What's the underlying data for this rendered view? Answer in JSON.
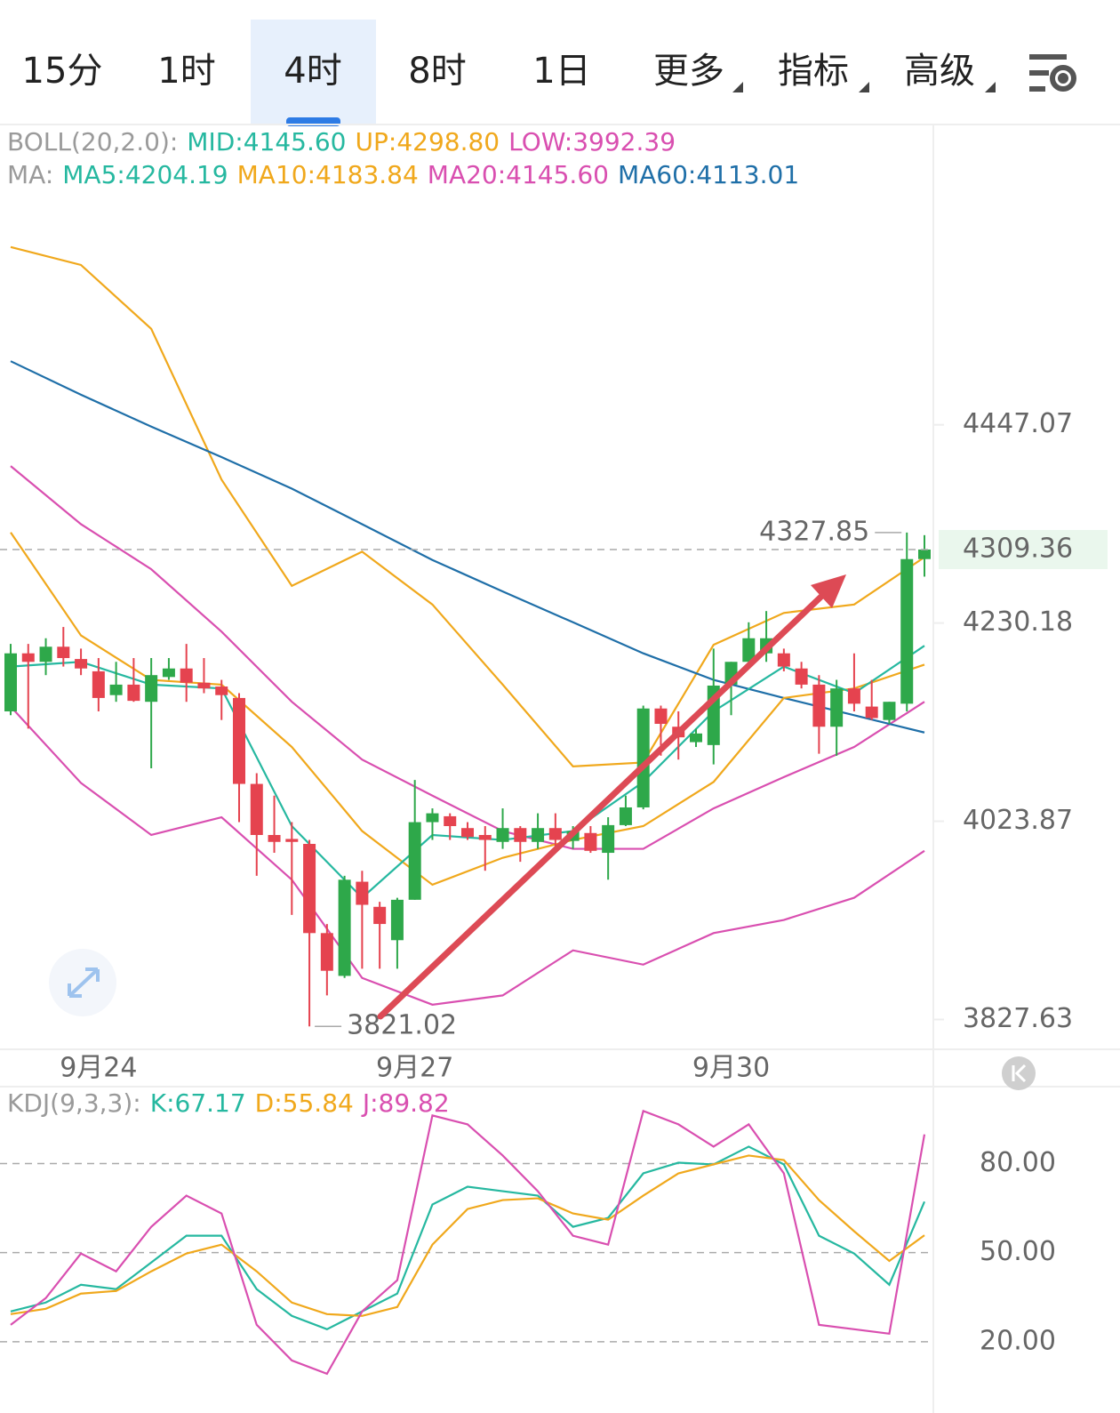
{
  "tabs": [
    "15分",
    "1时",
    "4时",
    "8时",
    "1日",
    "更多",
    "指标",
    "高级"
  ],
  "selected_tab": 2,
  "chart_data": [
    {
      "type": "candlestick",
      "log_scale": true,
      "legend_rows": [
        [
          {
            "text": "BOLL(20,2.0):",
            "color": "#9a9a9a"
          },
          {
            "text": "MID:4145.60",
            "color": "#26b8a0"
          },
          {
            "text": "UP:4298.80",
            "color": "#f0a81c"
          },
          {
            "text": "LOW:3992.39",
            "color": "#d94fb0"
          }
        ],
        [
          {
            "text": "MA:",
            "color": "#9a9a9a"
          },
          {
            "text": "MA5:4204.19",
            "color": "#26b8a0"
          },
          {
            "text": "MA10:4183.84",
            "color": "#f0a81c"
          },
          {
            "text": "MA20:4145.60",
            "color": "#d94fb0"
          },
          {
            "text": "MA60:4113.01",
            "color": "#1f6fa8"
          }
        ]
      ],
      "categories": [
        null,
        null,
        null,
        null,
        null,
        "9月24",
        null,
        null,
        null,
        null,
        null,
        null,
        null,
        null,
        null,
        null,
        null,
        null,
        null,
        null,
        null,
        null,
        null,
        "9月27",
        null,
        null,
        null,
        null,
        null,
        null,
        null,
        null,
        null,
        null,
        null,
        null,
        null,
        null,
        null,
        null,
        null,
        "9月30",
        null,
        null,
        null,
        null,
        null,
        null,
        null,
        null,
        null,
        null,
        null
      ],
      "open": [
        4137,
        4198,
        4189,
        4205,
        4192,
        4179,
        4154,
        4165,
        4147,
        4173,
        4182,
        4167,
        4163,
        4151,
        4062,
        4010,
        4006,
        4001,
        3912,
        3870,
        3963,
        3938,
        3905,
        3945,
        4023,
        4029,
        4017,
        4010,
        4003,
        4017,
        4003,
        4017,
        4004,
        4012,
        3992,
        4020,
        4038,
        4140,
        4121,
        4105,
        4102,
        4165,
        4189,
        4198,
        4198,
        4182,
        4165,
        4121,
        4161,
        4142,
        4128,
        4145,
        4299
      ],
      "high": [
        4208,
        4208,
        4214,
        4226,
        4203,
        4193,
        4189,
        4193,
        4193,
        4193,
        4208,
        4193,
        4170,
        4156,
        4073,
        4050,
        4023,
        4005,
        3921,
        3969,
        3974,
        3943,
        3947,
        4066,
        4037,
        4032,
        4023,
        4019,
        4037,
        4019,
        4032,
        4032,
        4019,
        4019,
        4028,
        4050,
        4143,
        4143,
        4137,
        4119,
        4203,
        4189,
        4231,
        4243,
        4203,
        4189,
        4175,
        4170,
        4198,
        4170,
        4147,
        4327.85,
        4325
      ],
      "low": [
        4133,
        4119,
        4175,
        4184,
        4175,
        4137,
        4147,
        4147,
        4078,
        4170,
        4147,
        4156,
        4128,
        4023,
        3969,
        3992,
        3930,
        3821.02,
        3851,
        3868,
        3877,
        3877,
        3877,
        3945,
        4005,
        4005,
        4005,
        3974,
        3996,
        3983,
        3996,
        3992,
        3996,
        3992,
        3965,
        4019,
        4036,
        4091,
        4087,
        4100,
        4082,
        4133,
        4189,
        4189,
        4179,
        4161,
        4093,
        4091,
        4137,
        4128,
        4124,
        4137,
        4280
      ],
      "close": [
        4198,
        4189,
        4205,
        4193,
        4182,
        4151,
        4165,
        4148,
        4175,
        4182,
        4167,
        4161,
        4154,
        4062,
        4010,
        4003,
        4003,
        3912,
        3875,
        3965,
        3940,
        3921,
        3945,
        4023,
        4032,
        4019,
        4008,
        4005,
        4017,
        4003,
        4017,
        4005,
        4014,
        3994,
        4020,
        4038,
        4140,
        4124,
        4110,
        4114,
        4164,
        4189,
        4214,
        4214,
        4184,
        4165,
        4121,
        4161,
        4145,
        4130,
        4147,
        4299,
        4309.36
      ],
      "up_color": "#2ea84a",
      "down_color": "#e5434f",
      "series": [
        {
          "color": "#f0a81c",
          "x": [
            0,
            4,
            8,
            12,
            16,
            20,
            24,
            28,
            32,
            36,
            40,
            44,
            48,
            52
          ],
          "values": [
            4651,
            4630,
            4556,
            4386,
            4270,
            4307,
            4250,
            4165,
            4080,
            4084,
            4207,
            4241,
            4250,
            4301
          ]
        },
        {
          "color": "#d94fb0",
          "x": [
            0,
            4,
            8,
            12,
            16,
            20,
            24,
            28,
            32,
            36,
            40,
            44,
            48,
            52
          ],
          "values": [
            4401,
            4337,
            4288,
            4221,
            4147,
            4087,
            4050,
            4014,
            3996,
            3996,
            4037,
            4069,
            4100,
            4147
          ]
        },
        {
          "color": "#d94fb0",
          "x": [
            0,
            4,
            8,
            12,
            16,
            20,
            24,
            28,
            32,
            36,
            40,
            44,
            48,
            52
          ],
          "values": [
            4142,
            4063,
            4010,
            4028,
            3965,
            3868,
            3842,
            3851,
            3895,
            3881,
            3912,
            3925,
            3947,
            3994
          ]
        },
        {
          "color": "#1f6fa8",
          "x": [
            0,
            4,
            8,
            12,
            16,
            20,
            24,
            28,
            32,
            36,
            40,
            44,
            48,
            52
          ],
          "values": [
            4519,
            4481,
            4445,
            4411,
            4376,
            4337,
            4298,
            4264,
            4231,
            4198,
            4170,
            4151,
            4133,
            4115
          ]
        },
        {
          "color": "#f0a81c",
          "x": [
            0,
            4,
            8,
            12,
            16,
            20,
            24,
            28,
            32,
            36,
            40,
            44,
            48,
            52
          ],
          "values": [
            4328,
            4217,
            4170,
            4165,
            4100,
            4014,
            3960,
            3987,
            4005,
            4019,
            4064,
            4151,
            4161,
            4186
          ]
        },
        {
          "color": "#26b8a0",
          "x": [
            0,
            4,
            8,
            12,
            16,
            20,
            24,
            28,
            32,
            36,
            40,
            44,
            48,
            52
          ],
          "values": [
            4184,
            4189,
            4165,
            4161,
            4019,
            3947,
            4010,
            4005,
            4014,
            4064,
            4137,
            4184,
            4156,
            4206
          ]
        }
      ],
      "ylim": [
        3799,
        4797
      ],
      "yticks": [
        4447.07,
        4230.18,
        4023.87,
        3827.63
      ]
    },
    {
      "type": "line",
      "legend_rows": [
        [
          {
            "text": "KDJ(9,3,3):",
            "color": "#9a9a9a"
          },
          {
            "text": "K:67.17",
            "color": "#26b8a0"
          },
          {
            "text": "D:55.84",
            "color": "#f0a81c"
          },
          {
            "text": "J:89.82",
            "color": "#d94fb0"
          }
        ]
      ],
      "x": [
        0,
        2,
        4,
        6,
        8,
        10,
        12,
        14,
        16,
        18,
        20,
        22,
        24,
        26,
        28,
        30,
        32,
        34,
        36,
        38,
        40,
        42,
        44,
        46,
        48,
        50,
        52
      ],
      "series": [
        {
          "color": "#26b8a0",
          "values": [
            30.2,
            33.2,
            39.2,
            37.7,
            46.7,
            55.7,
            55.7,
            37.7,
            28.7,
            24.2,
            30.2,
            36.2,
            66.2,
            72.2,
            70.7,
            69.2,
            58.7,
            61.7,
            76.7,
            80.3,
            79.7,
            85.7,
            79.7,
            55.7,
            49.7,
            39.2,
            67.17
          ]
        },
        {
          "color": "#f0a81c",
          "values": [
            29.3,
            31.1,
            36.2,
            37.1,
            43.7,
            49.7,
            52.7,
            43.7,
            33.2,
            29.3,
            28.7,
            31.7,
            52.7,
            64.7,
            67.7,
            68.3,
            63.2,
            61.1,
            69.2,
            76.7,
            79.7,
            82.7,
            81.2,
            67.7,
            57.2,
            47.2,
            55.84
          ]
        },
        {
          "color": "#d94fb0",
          "values": [
            25.7,
            34.7,
            49.7,
            43.7,
            58.7,
            69.2,
            63.2,
            25.7,
            13.7,
            9.2,
            30.2,
            40.7,
            96.2,
            93.2,
            82.7,
            70.7,
            55.7,
            52.7,
            97.7,
            93.2,
            85.7,
            93.2,
            76.7,
            25.7,
            24.2,
            22.7,
            89.82
          ]
        }
      ],
      "ylim": [
        -4,
        105
      ],
      "yticks": [
        {
          "value": 80,
          "label": "80.00"
        },
        {
          "value": 50,
          "label": "50.00"
        },
        {
          "value": 20,
          "label": "20.00"
        }
      ],
      "grid": true
    }
  ]
}
